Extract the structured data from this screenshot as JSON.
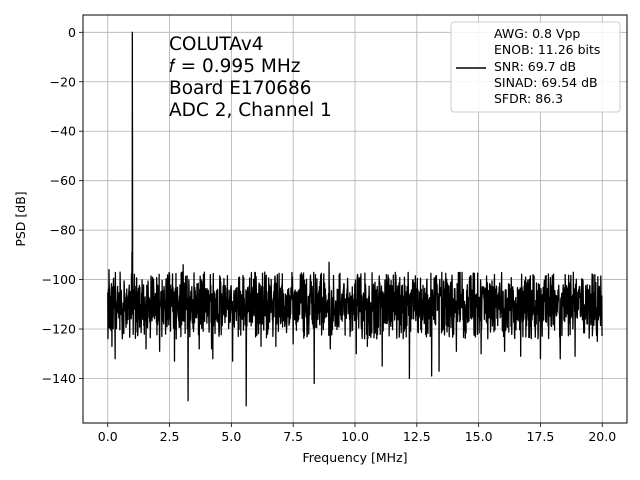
{
  "chart_data": {
    "type": "line",
    "xlabel": "Frequency [MHz]",
    "ylabel": "PSD [dB]",
    "xlim": [
      -1.0,
      21.0
    ],
    "ylim": [
      -158,
      7
    ],
    "xticks": [
      0.0,
      2.5,
      5.0,
      7.5,
      10.0,
      12.5,
      15.0,
      17.5,
      20.0
    ],
    "xtick_labels": [
      "0.0",
      "2.5",
      "5.0",
      "7.5",
      "10.0",
      "12.5",
      "15.0",
      "17.5",
      "20.0"
    ],
    "yticks": [
      0,
      -20,
      -40,
      -60,
      -80,
      -100,
      -120,
      -140
    ],
    "ytick_labels": [
      "0",
      "−20",
      "−40",
      "−60",
      "−80",
      "−100",
      "−120",
      "−140"
    ],
    "grid": true,
    "annotation": {
      "lines": [
        "COLUTAv4",
        "𝑓 = 0.995 MHz",
        "Board E170686",
        "ADC 2, Channel 1"
      ]
    },
    "legend": {
      "placement": "top-right",
      "lines": [
        "AWG: 0.8 Vpp",
        "ENOB: 11.26 bits",
        "SNR: 69.7 dB",
        "SINAD: 69.54 dB",
        "SFDR: 86.3"
      ]
    },
    "series": [
      {
        "color": "#000000",
        "x_range": [
          0.0,
          20.0
        ],
        "noise_floor_mean": -110,
        "noise_upper_bound": -97,
        "noise_lower_bound": -124,
        "peaks": [
          {
            "x": 0.995,
            "y": 0
          },
          {
            "x": 0.98,
            "y": -89
          }
        ],
        "spurs_low": [
          {
            "x": 0.17,
            "y": -127
          },
          {
            "x": 0.3,
            "y": -132
          },
          {
            "x": 1.55,
            "y": -128
          },
          {
            "x": 2.1,
            "y": -129
          },
          {
            "x": 2.7,
            "y": -133
          },
          {
            "x": 3.25,
            "y": -149
          },
          {
            "x": 3.7,
            "y": -128
          },
          {
            "x": 4.2,
            "y": -128
          },
          {
            "x": 4.25,
            "y": -132
          },
          {
            "x": 5.05,
            "y": -133
          },
          {
            "x": 5.6,
            "y": -151
          },
          {
            "x": 6.2,
            "y": -127
          },
          {
            "x": 6.8,
            "y": -127
          },
          {
            "x": 7.5,
            "y": -126
          },
          {
            "x": 8.35,
            "y": -142
          },
          {
            "x": 9.0,
            "y": -128
          },
          {
            "x": 10.05,
            "y": -130
          },
          {
            "x": 10.5,
            "y": -127
          },
          {
            "x": 11.1,
            "y": -135
          },
          {
            "x": 12.2,
            "y": -140
          },
          {
            "x": 13.1,
            "y": -139
          },
          {
            "x": 13.4,
            "y": -137
          },
          {
            "x": 14.1,
            "y": -129
          },
          {
            "x": 15.1,
            "y": -130
          },
          {
            "x": 16.05,
            "y": -129
          },
          {
            "x": 16.7,
            "y": -131
          },
          {
            "x": 17.5,
            "y": -132
          },
          {
            "x": 18.3,
            "y": -132
          },
          {
            "x": 18.9,
            "y": -131
          },
          {
            "x": 19.8,
            "y": -125
          }
        ],
        "spurs_high": [
          {
            "x": 0.05,
            "y": -96
          },
          {
            "x": 0.5,
            "y": -97
          },
          {
            "x": 3.0,
            "y": -97
          },
          {
            "x": 3.05,
            "y": -94
          },
          {
            "x": 4.15,
            "y": -98
          },
          {
            "x": 6.35,
            "y": -97
          },
          {
            "x": 8.4,
            "y": -98
          },
          {
            "x": 8.95,
            "y": -93
          },
          {
            "x": 10.1,
            "y": -98
          },
          {
            "x": 12.0,
            "y": -99
          },
          {
            "x": 16.9,
            "y": -99
          },
          {
            "x": 17.2,
            "y": -98
          },
          {
            "x": 19.7,
            "y": -98
          }
        ]
      }
    ]
  }
}
